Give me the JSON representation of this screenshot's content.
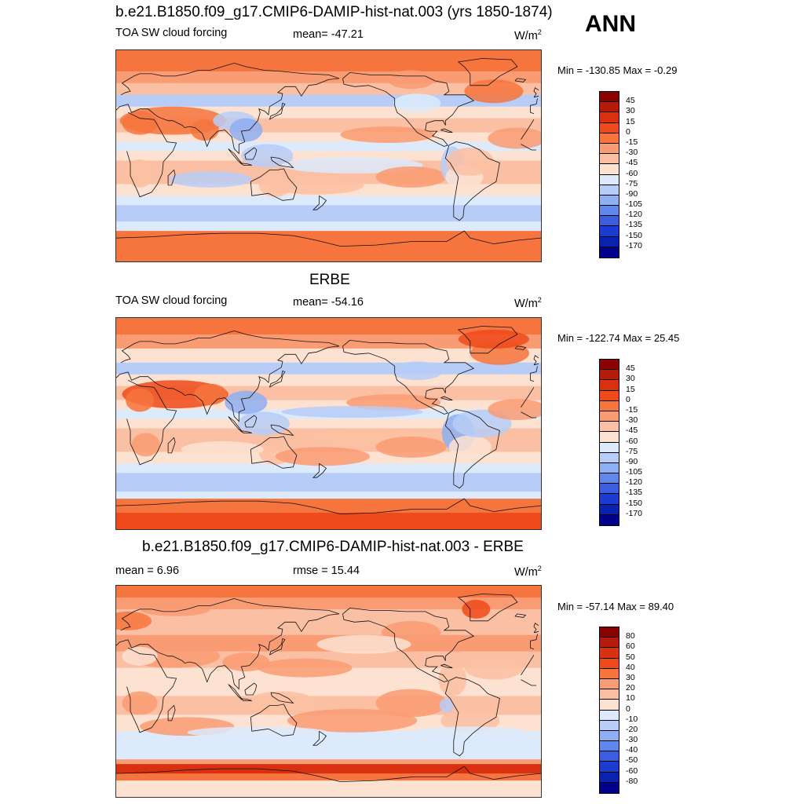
{
  "season": "ANN",
  "panels": [
    {
      "title": "b.e21.B1850.f09_g17.CMIP6-DAMIP-hist-nat.003 (yrs 1850-1874)",
      "left_label": "TOA SW cloud forcing",
      "center_label": "mean= -47.21",
      "units": "W/m",
      "units_sup": "2",
      "minmax": "Min = -130.85 Max =  -0.29",
      "colorbar": {
        "colors": [
          "#8b0000",
          "#b51a0a",
          "#d9300f",
          "#ee4a1b",
          "#f6743e",
          "#f99b73",
          "#fbbfa3",
          "#fde2d2",
          "#dceafb",
          "#b7cdf7",
          "#8eaff2",
          "#6287eb",
          "#3b5ee0",
          "#1c3bd0",
          "#0a22b0",
          "#00008b"
        ],
        "labels": [
          "45",
          "30",
          "15",
          "0",
          "-15",
          "-30",
          "-45",
          "-60",
          "-75",
          "-90",
          "-105",
          "-120",
          "-135",
          "-150",
          "-170"
        ]
      }
    },
    {
      "title": "ERBE",
      "left_label": "TOA SW cloud forcing",
      "center_label": "mean= -54.16",
      "units": "W/m",
      "units_sup": "2",
      "minmax": "Min = -122.74 Max =  25.45",
      "colorbar": {
        "colors": [
          "#8b0000",
          "#b51a0a",
          "#d9300f",
          "#ee4a1b",
          "#f6743e",
          "#f99b73",
          "#fbbfa3",
          "#fde2d2",
          "#dceafb",
          "#b7cdf7",
          "#8eaff2",
          "#6287eb",
          "#3b5ee0",
          "#1c3bd0",
          "#0a22b0",
          "#00008b"
        ],
        "labels": [
          "45",
          "30",
          "15",
          "0",
          "-15",
          "-30",
          "-45",
          "-60",
          "-75",
          "-90",
          "-105",
          "-120",
          "-135",
          "-150",
          "-170"
        ]
      }
    },
    {
      "title": "b.e21.B1850.f09_g17.CMIP6-DAMIP-hist-nat.003 - ERBE",
      "left_label": "mean =   6.96",
      "center_label": "rmse =  15.44",
      "units": "W/m",
      "units_sup": "2",
      "minmax": "Min = -57.14 Max =  89.40",
      "colorbar": {
        "colors": [
          "#8b0000",
          "#b51a0a",
          "#d9300f",
          "#ee4a1b",
          "#f6743e",
          "#f99b73",
          "#fbbfa3",
          "#fde2d2",
          "#dceafb",
          "#b7cdf7",
          "#8eaff2",
          "#6287eb",
          "#3b5ee0",
          "#1c3bd0",
          "#0a22b0",
          "#00008b"
        ],
        "labels": [
          "80",
          "60",
          "50",
          "40",
          "30",
          "20",
          "10",
          "0",
          "-10",
          "-20",
          "-30",
          "-40",
          "-50",
          "-60",
          "-80"
        ]
      }
    }
  ]
}
